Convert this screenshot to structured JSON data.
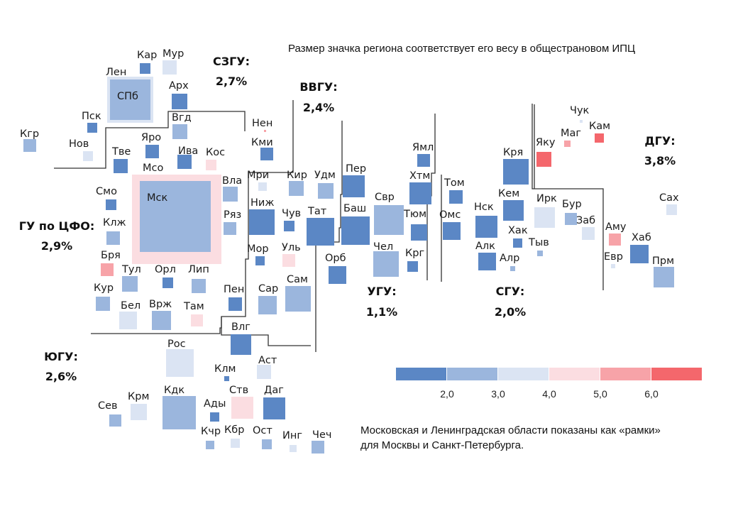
{
  "chart_data": {
    "type": "heatmap",
    "title": "Размер значка региона соответствует его весу в общестрановом ИПЦ",
    "footnote": [
      "Московская и Ленинградская области показаны как «рамки»",
      "для Москвы и Санкт-Петербурга."
    ],
    "legend": {
      "placement": "bottom-right",
      "ticks": [
        "2,0",
        "3,0",
        "4,0",
        "5,0",
        "6,0"
      ],
      "bins": [
        {
          "range": "<2,0",
          "color": "#5b87c5"
        },
        {
          "range": "2,0–3,0",
          "color": "#9bb6dd"
        },
        {
          "range": "3,0–4,0",
          "color": "#dbe4f3"
        },
        {
          "range": "4,0–5,0",
          "color": "#fbdde1"
        },
        {
          "range": "5,0–6,0",
          "color": "#f7a3a8"
        },
        {
          "range": ">6,0",
          "color": "#f4676c"
        }
      ]
    },
    "districts": [
      {
        "name": "СЗГУ:",
        "value": "2,7%"
      },
      {
        "name": "ВВГУ:",
        "value": "2,4%"
      },
      {
        "name": "ГУ по ЦФО:",
        "value": "2,9%"
      },
      {
        "name": "ЮГУ:",
        "value": "2,6%"
      },
      {
        "name": "УГУ:",
        "value": "1,1%"
      },
      {
        "name": "СГУ:",
        "value": "2,0%"
      },
      {
        "name": "ДГУ:",
        "value": "3,8%"
      }
    ],
    "regions": [
      {
        "label": "Кар",
        "bin": 0
      },
      {
        "label": "Мур",
        "bin": 2
      },
      {
        "label": "Лен",
        "bin": 2,
        "frame": true
      },
      {
        "label": "СПб",
        "bin": 1
      },
      {
        "label": "Арх",
        "bin": 0
      },
      {
        "label": "Вгд",
        "bin": 1
      },
      {
        "label": "Пск",
        "bin": 0
      },
      {
        "label": "Нов",
        "bin": 2
      },
      {
        "label": "Кгр",
        "bin": 1
      },
      {
        "label": "Нен",
        "bin": 4
      },
      {
        "label": "Кми",
        "bin": 0
      },
      {
        "label": "Тве",
        "bin": 0
      },
      {
        "label": "Яро",
        "bin": 0
      },
      {
        "label": "Мсо",
        "bin": 3,
        "frame": true
      },
      {
        "label": "Ива",
        "bin": 0
      },
      {
        "label": "Кос",
        "bin": 3
      },
      {
        "label": "Мск",
        "bin": 1
      },
      {
        "label": "Вла",
        "bin": 1
      },
      {
        "label": "Ряз",
        "bin": 1
      },
      {
        "label": "Смо",
        "bin": 0
      },
      {
        "label": "Клж",
        "bin": 1
      },
      {
        "label": "Бря",
        "bin": 4
      },
      {
        "label": "Тул",
        "bin": 1
      },
      {
        "label": "Орл",
        "bin": 0
      },
      {
        "label": "Лип",
        "bin": 1
      },
      {
        "label": "Кур",
        "bin": 1
      },
      {
        "label": "Бел",
        "bin": 2
      },
      {
        "label": "Врж",
        "bin": 1
      },
      {
        "label": "Там",
        "bin": 3
      },
      {
        "label": "Мри",
        "bin": 2
      },
      {
        "label": "Кир",
        "bin": 1
      },
      {
        "label": "Удм",
        "bin": 1
      },
      {
        "label": "Ниж",
        "bin": 0
      },
      {
        "label": "Чув",
        "bin": 0
      },
      {
        "label": "Тат",
        "bin": 0
      },
      {
        "label": "Мор",
        "bin": 0
      },
      {
        "label": "Уль",
        "bin": 3
      },
      {
        "label": "Пен",
        "bin": 0
      },
      {
        "label": "Сар",
        "bin": 1
      },
      {
        "label": "Сам",
        "bin": 1
      },
      {
        "label": "Пер",
        "bin": 0
      },
      {
        "label": "Баш",
        "bin": 0
      },
      {
        "label": "Орб",
        "bin": 0
      },
      {
        "label": "Влг",
        "bin": 0
      },
      {
        "label": "Рос",
        "bin": 2
      },
      {
        "label": "Клм",
        "bin": 0
      },
      {
        "label": "Аст",
        "bin": 2
      },
      {
        "label": "Сев",
        "bin": 1
      },
      {
        "label": "Крм",
        "bin": 2
      },
      {
        "label": "Кдк",
        "bin": 1
      },
      {
        "label": "Ады",
        "bin": 0
      },
      {
        "label": "Ств",
        "bin": 3
      },
      {
        "label": "Даг",
        "bin": 0
      },
      {
        "label": "Кчр",
        "bin": 1
      },
      {
        "label": "Кбр",
        "bin": 2
      },
      {
        "label": "Ост",
        "bin": 1
      },
      {
        "label": "Инг",
        "bin": 2
      },
      {
        "label": "Чеч",
        "bin": 1
      },
      {
        "label": "Ямл",
        "bin": 0
      },
      {
        "label": "Хтм",
        "bin": 0
      },
      {
        "label": "Свр",
        "bin": 1
      },
      {
        "label": "Тюм",
        "bin": 0
      },
      {
        "label": "Чел",
        "bin": 1
      },
      {
        "label": "Крг",
        "bin": 0
      },
      {
        "label": "Том",
        "bin": 0
      },
      {
        "label": "Омс",
        "bin": 0
      },
      {
        "label": "Кря",
        "bin": 0
      },
      {
        "label": "Кем",
        "bin": 0
      },
      {
        "label": "Нск",
        "bin": 0
      },
      {
        "label": "Хак",
        "bin": 0
      },
      {
        "label": "Алк",
        "bin": 0
      },
      {
        "label": "Алр",
        "bin": 1
      },
      {
        "label": "Ирк",
        "bin": 2
      },
      {
        "label": "Бур",
        "bin": 1
      },
      {
        "label": "Заб",
        "bin": 2
      },
      {
        "label": "Тыв",
        "bin": 1
      },
      {
        "label": "Чук",
        "bin": 2
      },
      {
        "label": "Маг",
        "bin": 4
      },
      {
        "label": "Кам",
        "bin": 5
      },
      {
        "label": "Яку",
        "bin": 5
      },
      {
        "label": "Сах",
        "bin": 2
      },
      {
        "label": "Аму",
        "bin": 4
      },
      {
        "label": "Хаб",
        "bin": 0
      },
      {
        "label": "Евр",
        "bin": 2
      },
      {
        "label": "Прм",
        "bin": 1
      }
    ]
  }
}
